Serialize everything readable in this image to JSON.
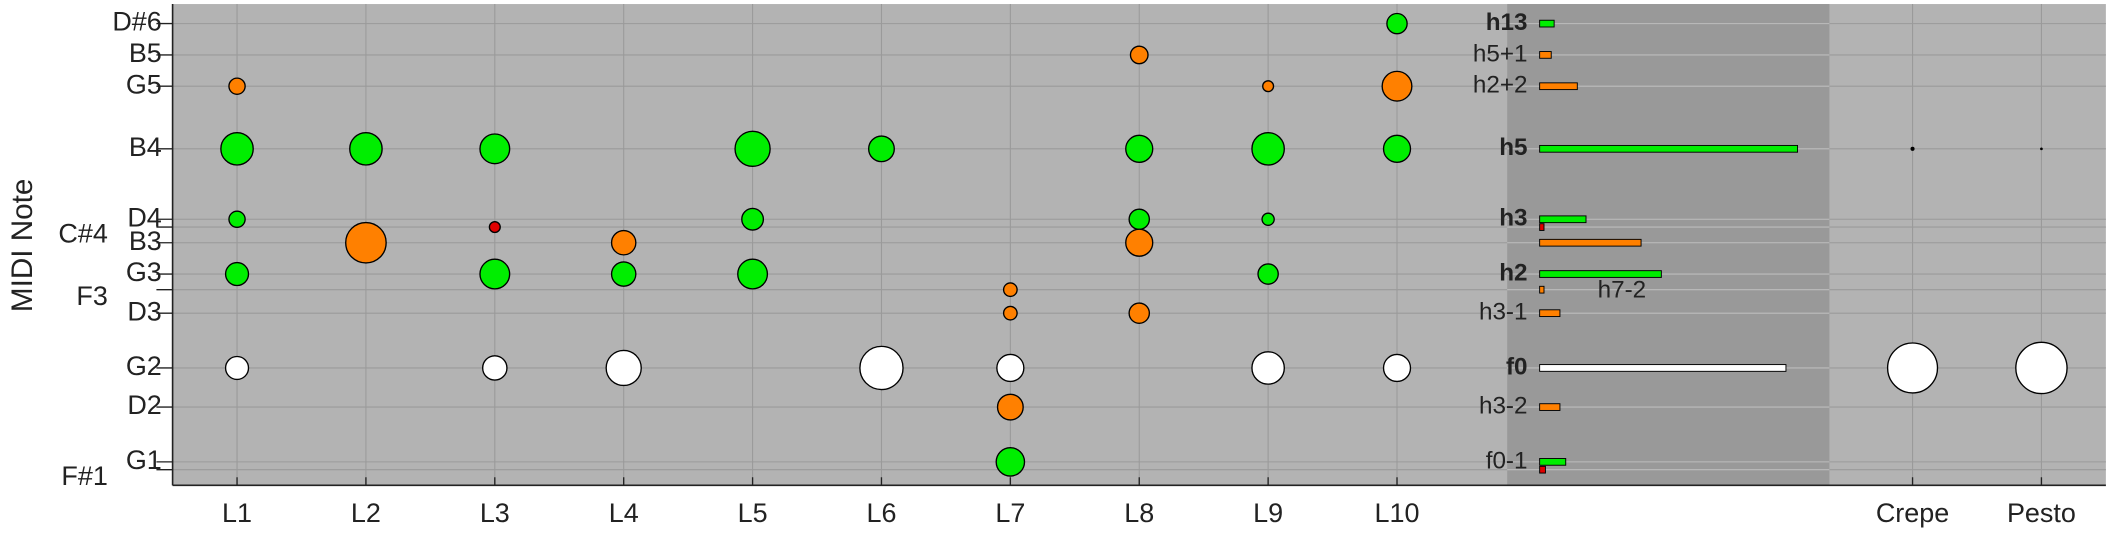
{
  "chart_data": {
    "type": "bubble",
    "y_label": "MIDI Note",
    "categories": [
      "L1",
      "L2",
      "L3",
      "L4",
      "L5",
      "L6",
      "L7",
      "L8",
      "L9",
      "L10",
      null,
      null,
      null,
      "Crepe",
      "Pesto"
    ],
    "ylim": [
      28,
      89.5
    ],
    "yticks": [
      {
        "value": 87,
        "label": "D#6"
      },
      {
        "value": 83,
        "label": "B5"
      },
      {
        "value": 79,
        "label": "G5"
      },
      {
        "value": 71,
        "label": "B4"
      },
      {
        "value": 62,
        "label": "D4"
      },
      {
        "value": 61,
        "label": "C#4"
      },
      {
        "value": 59,
        "label": "B3"
      },
      {
        "value": 55,
        "label": "G3"
      },
      {
        "value": 53,
        "label": "F3"
      },
      {
        "value": 50,
        "label": "D3"
      },
      {
        "value": 43,
        "label": "G2"
      },
      {
        "value": 38,
        "label": "D2"
      },
      {
        "value": 31,
        "label": "G1"
      },
      {
        "value": 30,
        "label": "F#1"
      }
    ],
    "grid": true,
    "bubbles": [
      {
        "category": "L1",
        "note": 79,
        "size": 12,
        "color": "#ff8000"
      },
      {
        "category": "L1",
        "note": 71,
        "size": 24,
        "color": "#00ee00"
      },
      {
        "category": "L1",
        "note": 62,
        "size": 12,
        "color": "#00ee00"
      },
      {
        "category": "L1",
        "note": 55,
        "size": 17,
        "color": "#00ee00"
      },
      {
        "category": "L1",
        "note": 43,
        "size": 17,
        "color": "#ffffff"
      },
      {
        "category": "L2",
        "note": 71,
        "size": 24,
        "color": "#00ee00"
      },
      {
        "category": "L2",
        "note": 59,
        "size": 30,
        "color": "#ff8000"
      },
      {
        "category": "L3",
        "note": 71,
        "size": 22,
        "color": "#00ee00"
      },
      {
        "category": "L3",
        "note": 61,
        "size": 8,
        "color": "#e00000"
      },
      {
        "category": "L3",
        "note": 55,
        "size": 22,
        "color": "#00ee00"
      },
      {
        "category": "L3",
        "note": 43,
        "size": 18,
        "color": "#ffffff"
      },
      {
        "category": "L4",
        "note": 59,
        "size": 18,
        "color": "#ff8000"
      },
      {
        "category": "L4",
        "note": 55,
        "size": 18,
        "color": "#00ee00"
      },
      {
        "category": "L4",
        "note": 43,
        "size": 26,
        "color": "#ffffff"
      },
      {
        "category": "L5",
        "note": 71,
        "size": 26,
        "color": "#00ee00"
      },
      {
        "category": "L5",
        "note": 62,
        "size": 16,
        "color": "#00ee00"
      },
      {
        "category": "L5",
        "note": 55,
        "size": 22,
        "color": "#00ee00"
      },
      {
        "category": "L6",
        "note": 71,
        "size": 19,
        "color": "#00ee00"
      },
      {
        "category": "L6",
        "note": 43,
        "size": 32,
        "color": "#ffffff"
      },
      {
        "category": "L7",
        "note": 53,
        "size": 10,
        "color": "#ff8000"
      },
      {
        "category": "L7",
        "note": 50,
        "size": 10,
        "color": "#ff8000"
      },
      {
        "category": "L7",
        "note": 43,
        "size": 20,
        "color": "#ffffff"
      },
      {
        "category": "L7",
        "note": 38,
        "size": 19,
        "color": "#ff8000"
      },
      {
        "category": "L7",
        "note": 31,
        "size": 21,
        "color": "#00ee00"
      },
      {
        "category": "L8",
        "note": 83,
        "size": 13,
        "color": "#ff8000"
      },
      {
        "category": "L8",
        "note": 71,
        "size": 20,
        "color": "#00ee00"
      },
      {
        "category": "L8",
        "note": 62,
        "size": 15,
        "color": "#00ee00"
      },
      {
        "category": "L8",
        "note": 59,
        "size": 20,
        "color": "#ff8000"
      },
      {
        "category": "L8",
        "note": 50,
        "size": 15,
        "color": "#ff8000"
      },
      {
        "category": "L9",
        "note": 79,
        "size": 8,
        "color": "#ff8000"
      },
      {
        "category": "L9",
        "note": 71,
        "size": 24,
        "color": "#00ee00"
      },
      {
        "category": "L9",
        "note": 62,
        "size": 9,
        "color": "#00ee00"
      },
      {
        "category": "L9",
        "note": 55,
        "size": 15,
        "color": "#00ee00"
      },
      {
        "category": "L9",
        "note": 43,
        "size": 24,
        "color": "#ffffff"
      },
      {
        "category": "L10",
        "note": 87,
        "size": 15,
        "color": "#00ee00"
      },
      {
        "category": "L10",
        "note": 79,
        "size": 22,
        "color": "#ff8000"
      },
      {
        "category": "L10",
        "note": 71,
        "size": 20,
        "color": "#00ee00"
      },
      {
        "category": "L10",
        "note": 43,
        "size": 20,
        "color": "#ffffff"
      },
      {
        "category": "Crepe",
        "note": 71,
        "size": 3,
        "color": "#000000"
      },
      {
        "category": "Crepe",
        "note": 43,
        "size": 37,
        "color": "#ffffff"
      },
      {
        "category": "Pesto",
        "note": 71,
        "size": 2,
        "color": "#000000"
      },
      {
        "category": "Pesto",
        "note": 43,
        "size": 38,
        "color": "#ffffff"
      }
    ],
    "bar_xlim": [
      0,
      1
    ],
    "harmonics": [
      {
        "label": "h13",
        "note": 87,
        "value": 0.05,
        "color": "#00ee00",
        "bold": true
      },
      {
        "label": "h5+1",
        "note": 83,
        "value": 0.04,
        "color": "#ff8000"
      },
      {
        "label": "h2+2",
        "note": 79,
        "value": 0.13,
        "color": "#ff8000"
      },
      {
        "label": "h5",
        "note": 71,
        "value": 0.89,
        "color": "#00ee00",
        "bold": true
      },
      {
        "label": "h3",
        "note": 62,
        "value": 0.16,
        "color": "#00ee00",
        "bold": true
      },
      {
        "note": 61,
        "value": 0.015,
        "color": "#e00000"
      },
      {
        "note": 59,
        "value": 0.35,
        "color": "#ff8000"
      },
      {
        "label": "h2",
        "note": 55,
        "value": 0.42,
        "color": "#00ee00",
        "bold": true
      },
      {
        "label": "h7-2",
        "note": 53,
        "value": 0.015,
        "color": "#ff8000"
      },
      {
        "label": "h3-1",
        "note": 50,
        "value": 0.07,
        "color": "#ff8000"
      },
      {
        "label": "f0",
        "note": 43,
        "value": 0.85,
        "color": "#ffffff",
        "bold": true
      },
      {
        "label": "h3-2",
        "note": 38,
        "value": 0.07,
        "color": "#ff8000"
      },
      {
        "label": "f0-1",
        "note": 31,
        "value": 0.09,
        "color": "#00ee00"
      },
      {
        "note": 30,
        "value": 0.02,
        "color": "#e00000"
      }
    ]
  }
}
